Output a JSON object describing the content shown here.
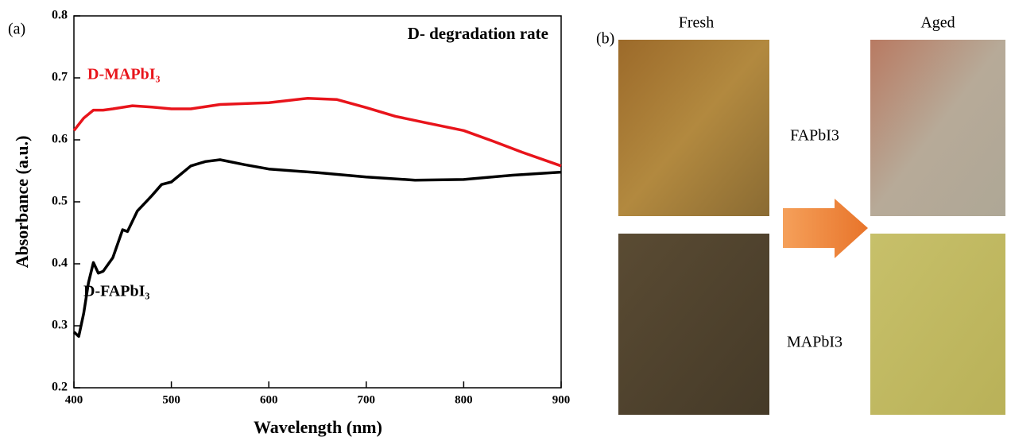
{
  "chart_data": {
    "type": "line",
    "title": "D- degradation rate",
    "xlabel": "Wavelength (nm)",
    "ylabel": "Absorbance (a.u.)",
    "xlim": [
      400,
      900
    ],
    "xticks": [
      400,
      500,
      600,
      700,
      800,
      900
    ],
    "ylim": [
      0.2,
      0.8
    ],
    "yticks": [
      0.2,
      0.3,
      0.4,
      0.5,
      0.6,
      0.7,
      0.8
    ],
    "series": [
      {
        "name": "D-MAPbI₃",
        "color": "#e8141b",
        "x": [
          400,
          410,
          420,
          430,
          440,
          460,
          480,
          500,
          520,
          550,
          600,
          640,
          670,
          700,
          730,
          760,
          800,
          830,
          860,
          900
        ],
        "values": [
          0.615,
          0.635,
          0.648,
          0.648,
          0.65,
          0.655,
          0.653,
          0.65,
          0.65,
          0.657,
          0.66,
          0.667,
          0.665,
          0.652,
          0.638,
          0.628,
          0.615,
          0.598,
          0.58,
          0.558
        ]
      },
      {
        "name": "D-FAPbI₃",
        "color": "#000000",
        "x": [
          400,
          405,
          410,
          415,
          420,
          425,
          430,
          440,
          450,
          455,
          465,
          480,
          490,
          500,
          510,
          520,
          535,
          550,
          575,
          600,
          650,
          700,
          750,
          800,
          850,
          900
        ],
        "values": [
          0.29,
          0.283,
          0.32,
          0.37,
          0.402,
          0.385,
          0.388,
          0.41,
          0.455,
          0.452,
          0.485,
          0.51,
          0.528,
          0.532,
          0.545,
          0.558,
          0.565,
          0.568,
          0.56,
          0.553,
          0.547,
          0.54,
          0.535,
          0.536,
          0.543,
          0.548
        ]
      }
    ]
  },
  "panel_a_label": "(a)",
  "panel_b": {
    "label": "(b)",
    "columns": [
      "Fresh",
      "Aged"
    ],
    "rows": [
      "FAPbI3",
      "MAPbI3"
    ]
  }
}
